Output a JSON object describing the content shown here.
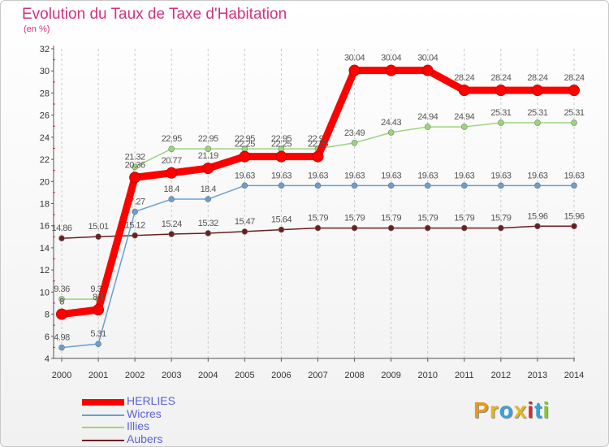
{
  "title": "Evolution du Taux de Taxe d'Habitation",
  "unit": "(en %)",
  "brand": {
    "text": "Proxiti",
    "colors": [
      "#e89a1e",
      "#e8b51e",
      "#3aa0d8",
      "#e8b51e",
      "#d82a2a",
      "#3aa0d8",
      "#86c83a"
    ]
  },
  "chart_data": {
    "type": "line",
    "title": "Evolution du Taux de Taxe d'Habitation",
    "ylabel": "(en %)",
    "ylim": [
      4,
      32
    ],
    "yticks": [
      4,
      6,
      8,
      10,
      12,
      14,
      16,
      18,
      20,
      22,
      24,
      26,
      28,
      30,
      32
    ],
    "x": [
      "2000",
      "2001",
      "2002",
      "2003",
      "2004",
      "2005",
      "2006",
      "2007",
      "2008",
      "2009",
      "2010",
      "2011",
      "2012",
      "2013",
      "2014"
    ],
    "grid": "vertical dashed",
    "legend": "bottom-left",
    "series": [
      {
        "name": "Aubers",
        "color": "#6b1f1f",
        "values": [
          14.86,
          15.01,
          15.12,
          15.24,
          15.32,
          15.47,
          15.64,
          15.79,
          15.79,
          15.79,
          15.79,
          15.79,
          15.79,
          15.96,
          15.96
        ],
        "labels": [
          "14.86",
          "15.01",
          "15.12",
          "15.24",
          "15.32",
          "15.47",
          "15.64",
          "15.79",
          "15.79",
          "15.79",
          "15.79",
          "15.79",
          "15.79",
          "15.96",
          "15.96"
        ]
      },
      {
        "name": "Illies",
        "color": "#9ad67a",
        "values": [
          9.36,
          9.36,
          21.32,
          22.95,
          22.95,
          22.95,
          22.95,
          22.95,
          23.49,
          24.43,
          24.94,
          24.94,
          25.31,
          25.31,
          25.31
        ],
        "labels": [
          "9.36",
          "9.36",
          "21.32",
          "22.95",
          "22.95",
          "22.95",
          "22.95",
          "22.95",
          "23.49",
          "24.43",
          "24.94",
          "24.94",
          "25.31",
          "25.31",
          "25.31"
        ]
      },
      {
        "name": "Wicres",
        "color": "#6a9fcf",
        "values": [
          4.98,
          5.31,
          17.27,
          18.4,
          18.4,
          19.63,
          19.63,
          19.63,
          19.63,
          19.63,
          19.63,
          19.63,
          19.63,
          19.63,
          19.63
        ],
        "labels": [
          "4.98",
          "5.31",
          "17.27",
          "18.4",
          "18.4",
          "19.63",
          "19.63",
          "19.63",
          "19.63",
          "19.63",
          "19.63",
          "19.63",
          "19.63",
          "19.63",
          "19.63"
        ]
      },
      {
        "name": "HERLIES",
        "color": "#ff0000",
        "values": [
          8,
          8.4,
          20.36,
          20.77,
          21.19,
          22.25,
          22.25,
          22.25,
          30.04,
          30.04,
          30.04,
          28.24,
          28.24,
          28.24,
          28.24
        ],
        "labels": [
          "8",
          "8.4",
          "20.36",
          "20.77",
          "21.19",
          "22.25",
          "22.25",
          "22.25",
          "30.04",
          "30.04",
          "30.04",
          "28.24",
          "28.24",
          "28.24",
          "28.24"
        ]
      }
    ],
    "legend_order": [
      "HERLIES",
      "Wicres",
      "Illies",
      "Aubers"
    ]
  }
}
